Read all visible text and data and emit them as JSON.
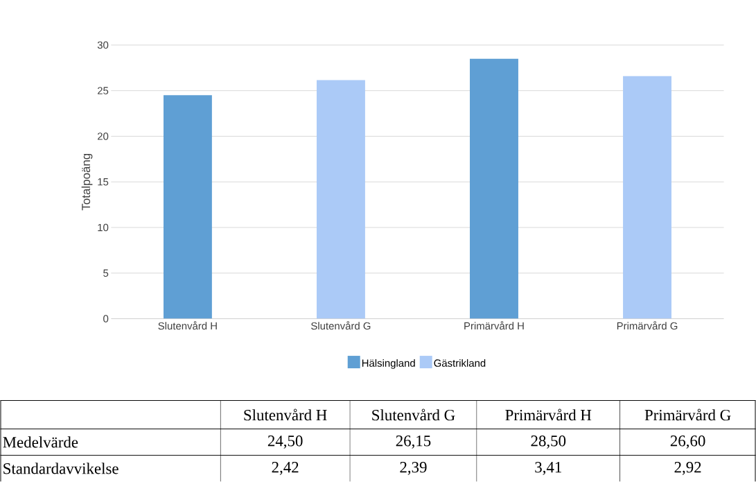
{
  "chart_data": {
    "type": "bar",
    "ylabel": "Totalpoäng",
    "categories": [
      "Slutenvård H",
      "Slutenvård  G",
      "Primärvård H",
      "Primärvård G"
    ],
    "series": [
      {
        "name": "Hälsingland",
        "color": "#5f9fd4",
        "values": [
          24.5,
          null,
          28.5,
          null
        ]
      },
      {
        "name": "Gästrikland",
        "color": "#abcaf7",
        "values": [
          null,
          26.15,
          null,
          26.6
        ]
      }
    ],
    "ylim": [
      0,
      30
    ],
    "yticks": [
      0,
      5,
      10,
      15,
      20,
      25,
      30
    ],
    "grid": "y",
    "legend": "bottom",
    "annotations": [
      "Medelvärde",
      "24,50",
      "26,15",
      "28,50",
      "26,60",
      "Standardavvikelse",
      "2,42",
      "2,39",
      "3,41",
      "2,92"
    ]
  }
}
